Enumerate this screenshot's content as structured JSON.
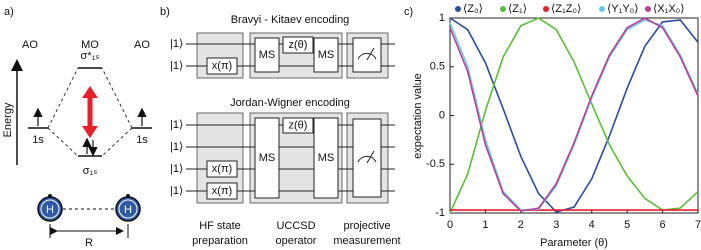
{
  "panel_a": {
    "label": "a)",
    "ao_left": "AO",
    "mo": "MO",
    "ao_right": "AO",
    "energy": "Energy",
    "left_orbital": "1s",
    "right_orbital": "1s",
    "antibonding": "σ*₁ₛ",
    "bonding": "σ₁ₛ",
    "atom_left": "H",
    "atom_right": "H",
    "distance": "R"
  },
  "panel_b": {
    "label": "b)",
    "bk_title": "Bravyi - Kitaev encoding",
    "bk_inputs": [
      "|1⟩",
      "|1⟩"
    ],
    "bk_gates": [
      "x(π)",
      "MS",
      "z(θ)",
      "MS"
    ],
    "jw_title": "Jordan-Wigner encoding",
    "jw_inputs": [
      "|1⟩",
      "|1⟩",
      "|1⟩",
      "|1⟩"
    ],
    "jw_gates": [
      "z(θ)",
      "MS",
      "MS",
      "x(π)",
      "x(π)"
    ],
    "stages": [
      [
        "HF state",
        "preparation"
      ],
      [
        "UCCSD",
        "operator"
      ],
      [
        "projective",
        "measurement"
      ]
    ]
  },
  "chart_data": {
    "type": "line",
    "label": "c)",
    "x_label": "Parameter (θ)",
    "y_label": "expectation value",
    "x": [
      0,
      0.5,
      1,
      1.5,
      2,
      2.5,
      3,
      3.5,
      4,
      4.5,
      5,
      5.5,
      6,
      6.5,
      7
    ],
    "series": [
      {
        "name": "⟨Z₀⟩",
        "color": "#2b4ea2",
        "values": [
          1,
          0.88,
          0.54,
          0.07,
          -0.42,
          -0.8,
          -0.99,
          -0.94,
          -0.65,
          -0.21,
          0.28,
          0.71,
          0.96,
          0.98,
          0.75
        ]
      },
      {
        "name": "⟨Z₁⟩",
        "color": "#5cbf3a",
        "values": [
          -1,
          -0.6,
          0.05,
          0.6,
          0.92,
          1,
          0.88,
          0.55,
          0.12,
          -0.3,
          -0.62,
          -0.85,
          -0.97,
          -0.95,
          -0.78
        ]
      },
      {
        "name": "⟨Z₁Z₀⟩",
        "color": "#e8202a",
        "values": [
          -0.97,
          -0.97,
          -0.97,
          -0.97,
          -0.97,
          -0.97,
          -0.97,
          -0.97,
          -0.97,
          -0.97,
          -0.97,
          -0.97,
          -0.97,
          -0.97,
          -0.97
        ]
      },
      {
        "name": "⟨Y₁Y₀⟩",
        "color": "#6cc6e8",
        "values": [
          0.95,
          0.5,
          -0.25,
          -0.78,
          -0.97,
          -0.96,
          -0.72,
          -0.3,
          0.18,
          0.6,
          0.88,
          0.98,
          0.92,
          0.62,
          0.22
        ]
      },
      {
        "name": "⟨X₁X₀⟩",
        "color": "#b8409a",
        "values": [
          0.9,
          0.45,
          -0.3,
          -0.8,
          -0.98,
          -0.95,
          -0.7,
          -0.28,
          0.2,
          0.62,
          0.9,
          1,
          0.9,
          0.6,
          0.2
        ]
      }
    ],
    "xlim": [
      0,
      7
    ],
    "xticks": [
      0,
      1,
      2,
      3,
      4,
      5,
      6,
      7
    ],
    "ylim": [
      -1,
      1
    ],
    "yticks": [
      -1,
      -0.5,
      0,
      0.5,
      1
    ],
    "grid": false,
    "legend": "top"
  }
}
